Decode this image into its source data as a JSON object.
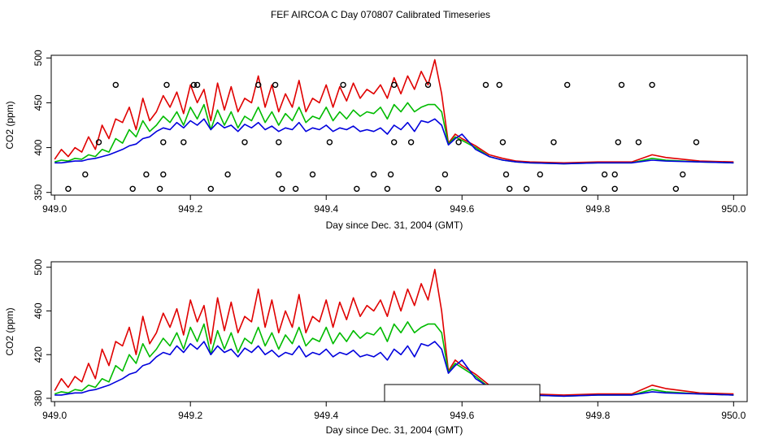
{
  "title": "FEF AIRCOA C  Day 070807  Calibrated Timeseries",
  "colors": {
    "series1": "#e00000",
    "series2": "#00bb00",
    "series3": "#0000dd",
    "axis": "#000000"
  },
  "chart_data": [
    {
      "type": "line",
      "xlabel": "Day since Dec. 31, 2004 (GMT)",
      "ylabel": "CO2 (ppm)",
      "xlim": [
        948.995,
        950.02
      ],
      "ylim": [
        347,
        503
      ],
      "xticks": [
        949.0,
        949.2,
        949.4,
        949.6,
        949.8,
        950.0
      ],
      "xtick_labels": [
        "949.0",
        "949.2",
        "949.4",
        "949.6",
        "949.8",
        "950.0"
      ],
      "yticks": [
        350,
        400,
        450,
        500
      ],
      "ytick_labels": [
        "350",
        "400",
        "450",
        "500"
      ],
      "series": [
        {
          "name": "red",
          "x": [
            949.0,
            949.01,
            949.02,
            949.03,
            949.04,
            949.05,
            949.06,
            949.07,
            949.08,
            949.09,
            949.1,
            949.11,
            949.12,
            949.13,
            949.14,
            949.15,
            949.16,
            949.17,
            949.18,
            949.19,
            949.2,
            949.21,
            949.22,
            949.23,
            949.24,
            949.25,
            949.26,
            949.27,
            949.28,
            949.29,
            949.3,
            949.31,
            949.32,
            949.33,
            949.34,
            949.35,
            949.36,
            949.37,
            949.38,
            949.39,
            949.4,
            949.41,
            949.42,
            949.43,
            949.44,
            949.45,
            949.46,
            949.47,
            949.48,
            949.49,
            949.5,
            949.51,
            949.52,
            949.53,
            949.54,
            949.55,
            949.56,
            949.57,
            949.58,
            949.59,
            949.6,
            949.62,
            949.64,
            949.66,
            949.68,
            949.7,
            949.75,
            949.8,
            949.85,
            949.88,
            949.9,
            949.95,
            950.0
          ],
          "values": [
            387,
            398,
            390,
            400,
            395,
            412,
            398,
            425,
            410,
            432,
            428,
            445,
            420,
            455,
            430,
            440,
            458,
            445,
            462,
            438,
            470,
            450,
            465,
            430,
            472,
            442,
            468,
            440,
            455,
            450,
            480,
            445,
            470,
            440,
            460,
            445,
            475,
            440,
            455,
            450,
            470,
            445,
            468,
            452,
            472,
            455,
            465,
            460,
            470,
            455,
            478,
            460,
            480,
            465,
            485,
            470,
            498,
            460,
            405,
            415,
            410,
            402,
            392,
            388,
            385,
            384,
            383,
            384,
            384,
            392,
            389,
            385,
            384
          ]
        },
        {
          "name": "green",
          "x": [
            949.0,
            949.01,
            949.02,
            949.03,
            949.04,
            949.05,
            949.06,
            949.07,
            949.08,
            949.09,
            949.1,
            949.11,
            949.12,
            949.13,
            949.14,
            949.15,
            949.16,
            949.17,
            949.18,
            949.19,
            949.2,
            949.21,
            949.22,
            949.23,
            949.24,
            949.25,
            949.26,
            949.27,
            949.28,
            949.29,
            949.3,
            949.31,
            949.32,
            949.33,
            949.34,
            949.35,
            949.36,
            949.37,
            949.38,
            949.39,
            949.4,
            949.41,
            949.42,
            949.43,
            949.44,
            949.45,
            949.46,
            949.47,
            949.48,
            949.49,
            949.5,
            949.51,
            949.52,
            949.53,
            949.54,
            949.55,
            949.56,
            949.57,
            949.58,
            949.59,
            949.6,
            949.62,
            949.64,
            949.66,
            949.68,
            949.7,
            949.75,
            949.8,
            949.85,
            949.88,
            949.9,
            949.95,
            950.0
          ],
          "values": [
            384,
            386,
            385,
            388,
            387,
            392,
            390,
            398,
            395,
            410,
            405,
            420,
            412,
            430,
            418,
            425,
            435,
            428,
            440,
            425,
            445,
            432,
            448,
            420,
            442,
            425,
            440,
            422,
            435,
            430,
            445,
            428,
            440,
            425,
            438,
            430,
            445,
            428,
            435,
            432,
            445,
            430,
            440,
            432,
            442,
            435,
            440,
            438,
            445,
            432,
            448,
            440,
            450,
            440,
            445,
            448,
            448,
            440,
            404,
            412,
            408,
            400,
            390,
            386,
            384,
            383,
            382,
            383,
            383,
            388,
            386,
            384,
            383
          ]
        },
        {
          "name": "blue",
          "x": [
            949.0,
            949.01,
            949.02,
            949.03,
            949.04,
            949.05,
            949.06,
            949.07,
            949.08,
            949.09,
            949.1,
            949.11,
            949.12,
            949.13,
            949.14,
            949.15,
            949.16,
            949.17,
            949.18,
            949.19,
            949.2,
            949.21,
            949.22,
            949.23,
            949.24,
            949.25,
            949.26,
            949.27,
            949.28,
            949.29,
            949.3,
            949.31,
            949.32,
            949.33,
            949.34,
            949.35,
            949.36,
            949.37,
            949.38,
            949.39,
            949.4,
            949.41,
            949.42,
            949.43,
            949.44,
            949.45,
            949.46,
            949.47,
            949.48,
            949.49,
            949.5,
            949.51,
            949.52,
            949.53,
            949.54,
            949.55,
            949.56,
            949.57,
            949.58,
            949.59,
            949.6,
            949.62,
            949.64,
            949.66,
            949.68,
            949.7,
            949.75,
            949.8,
            949.85,
            949.88,
            949.9,
            949.95,
            950.0
          ],
          "values": [
            383,
            383,
            384,
            385,
            385,
            387,
            388,
            390,
            392,
            395,
            398,
            402,
            404,
            410,
            412,
            418,
            422,
            420,
            428,
            422,
            430,
            425,
            432,
            420,
            428,
            422,
            425,
            418,
            426,
            422,
            428,
            420,
            424,
            418,
            422,
            420,
            428,
            418,
            422,
            420,
            425,
            418,
            422,
            420,
            424,
            418,
            420,
            418,
            422,
            415,
            425,
            420,
            428,
            418,
            430,
            428,
            432,
            425,
            403,
            410,
            415,
            398,
            390,
            386,
            384,
            383,
            382,
            383,
            383,
            386,
            385,
            384,
            383
          ]
        }
      ],
      "marker_series": {
        "name": "circles",
        "x": [
          949.02,
          949.045,
          949.065,
          949.09,
          949.115,
          949.135,
          949.155,
          949.16,
          949.16,
          949.165,
          949.19,
          949.205,
          949.21,
          949.23,
          949.255,
          949.28,
          949.3,
          949.325,
          949.33,
          949.33,
          949.335,
          949.355,
          949.38,
          949.405,
          949.425,
          949.445,
          949.47,
          949.49,
          949.495,
          949.5,
          949.5,
          949.525,
          949.55,
          949.565,
          949.575,
          949.595,
          949.635,
          949.655,
          949.66,
          949.665,
          949.67,
          949.695,
          949.715,
          949.735,
          949.755,
          949.78,
          949.81,
          949.825,
          949.825,
          949.83,
          949.835,
          949.86,
          949.88,
          949.915,
          949.925,
          949.945
        ],
        "values": [
          354,
          370,
          406,
          470,
          354,
          370,
          354,
          370,
          406,
          470,
          406,
          470,
          470,
          354,
          370,
          406,
          470,
          470,
          406,
          370,
          354,
          354,
          370,
          406,
          470,
          354,
          370,
          354,
          370,
          406,
          470,
          406,
          470,
          354,
          370,
          406,
          470,
          470,
          406,
          370,
          354,
          354,
          370,
          406,
          470,
          354,
          370,
          354,
          370,
          406,
          470,
          406,
          470,
          354,
          370,
          406
        ]
      }
    },
    {
      "type": "line",
      "xlabel": "Day since Dec. 31, 2004 (GMT)",
      "ylabel": "CO2 (ppm)",
      "xlim": [
        948.995,
        950.02
      ],
      "ylim": [
        377,
        505
      ],
      "xticks": [
        949.0,
        949.2,
        949.4,
        949.6,
        949.8,
        950.0
      ],
      "xtick_labels": [
        "949.0",
        "949.2",
        "949.4",
        "949.6",
        "949.8",
        "950.0"
      ],
      "yticks": [
        380,
        420,
        460,
        500
      ],
      "ytick_labels": [
        "380",
        "420",
        "460",
        "500"
      ],
      "legend_box": true,
      "series_ref": 0
    }
  ]
}
